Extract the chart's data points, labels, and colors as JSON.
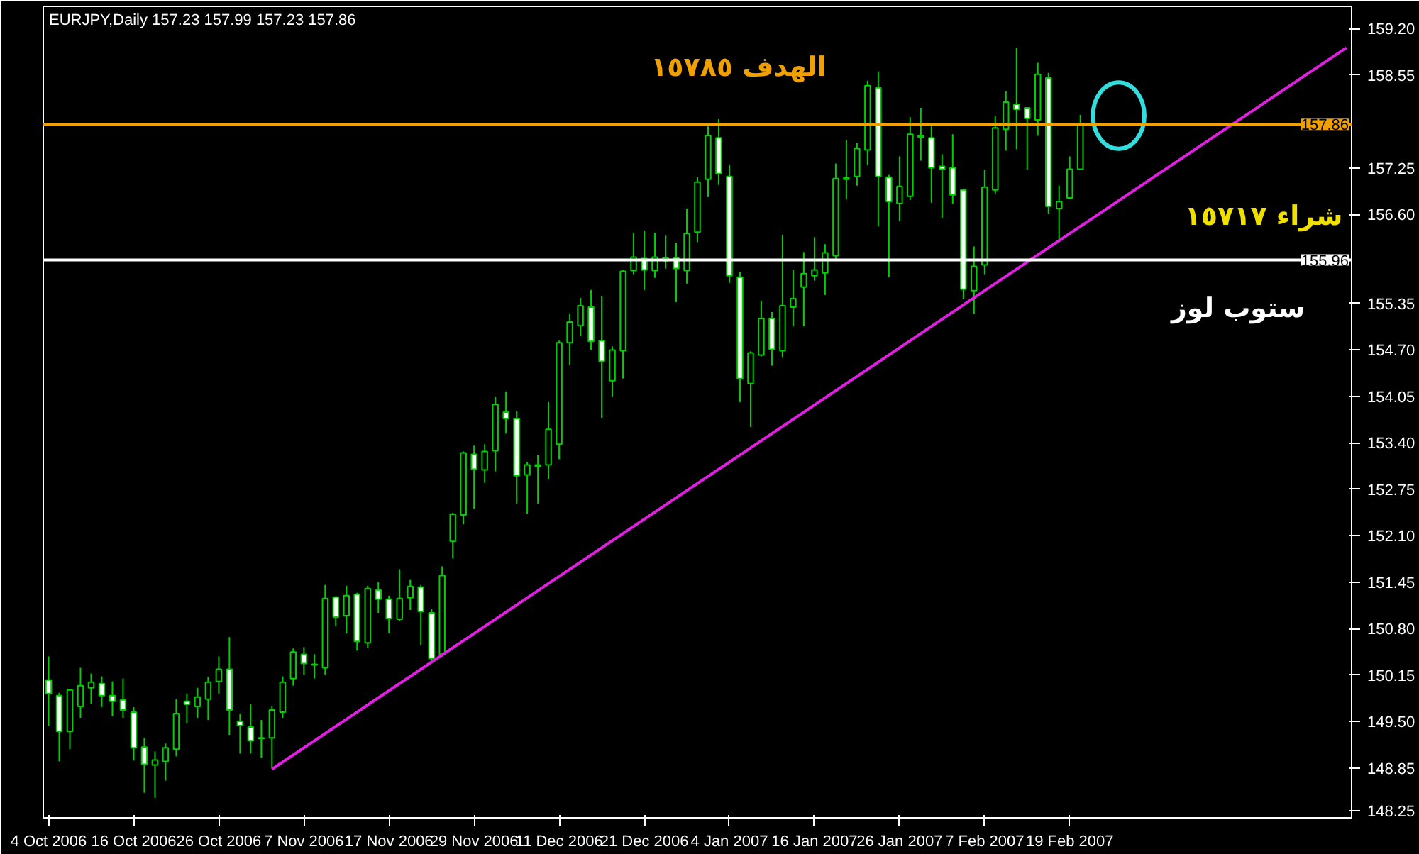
{
  "chart_data": {
    "type": "candlestick",
    "title": "EURJPY,Daily  157.23 157.99 157.23 157.86",
    "categories": [
      "4 Oct 2006",
      null,
      null,
      null,
      null,
      null,
      null,
      null,
      "16 Oct 2006",
      null,
      null,
      null,
      null,
      null,
      null,
      null,
      "26 Oct 2006",
      null,
      null,
      null,
      null,
      null,
      null,
      null,
      "7 Nov 2006",
      null,
      null,
      null,
      null,
      null,
      null,
      null,
      "17 Nov 2006",
      null,
      null,
      null,
      null,
      null,
      null,
      null,
      "29 Nov 2006",
      null,
      null,
      null,
      null,
      null,
      null,
      null,
      "11 Dec 2006",
      null,
      null,
      null,
      null,
      null,
      null,
      null,
      "21 Dec 2006",
      null,
      null,
      null,
      null,
      null,
      null,
      null,
      "4 Jan 2007",
      null,
      null,
      null,
      null,
      null,
      null,
      null,
      "16 Jan 2007",
      null,
      null,
      null,
      null,
      null,
      null,
      null,
      "26 Jan 2007",
      null,
      null,
      null,
      null,
      null,
      null,
      null,
      "7 Feb 2007",
      null,
      null,
      null,
      null,
      null,
      null,
      null,
      "19 Feb 2007",
      null,
      null,
      null,
      null,
      null,
      null,
      null,
      null,
      null,
      null,
      null,
      null,
      null,
      null,
      null,
      null,
      null,
      null,
      null,
      null,
      null,
      null,
      null,
      null,
      null,
      null
    ],
    "ohlc": [
      [
        150.08,
        150.41,
        149.44,
        149.89
      ],
      [
        149.86,
        149.9,
        148.94,
        149.36
      ],
      [
        149.36,
        149.94,
        149.11,
        149.94
      ],
      [
        149.71,
        150.25,
        149.55,
        150.0
      ],
      [
        149.97,
        150.17,
        149.75,
        150.05
      ],
      [
        150.03,
        150.13,
        149.7,
        149.86
      ],
      [
        149.86,
        150.06,
        149.57,
        149.78
      ],
      [
        149.8,
        150.1,
        149.55,
        149.66
      ],
      [
        149.63,
        149.7,
        148.95,
        149.13
      ],
      [
        149.14,
        149.27,
        148.5,
        148.9
      ],
      [
        148.89,
        149.08,
        148.43,
        148.96
      ],
      [
        148.94,
        149.19,
        148.67,
        149.13
      ],
      [
        149.11,
        149.81,
        149.01,
        149.61
      ],
      [
        149.78,
        149.89,
        149.47,
        149.74
      ],
      [
        149.71,
        149.97,
        149.55,
        149.84
      ],
      [
        149.81,
        150.12,
        149.52,
        150.05
      ],
      [
        150.06,
        150.41,
        149.89,
        150.23
      ],
      [
        150.23,
        150.68,
        149.31,
        149.66
      ],
      [
        149.5,
        149.61,
        149.05,
        149.44
      ],
      [
        149.42,
        149.74,
        149.05,
        149.23
      ],
      [
        149.27,
        149.52,
        148.99,
        149.26
      ],
      [
        149.27,
        149.71,
        148.84,
        149.66
      ],
      [
        149.63,
        150.13,
        149.55,
        150.05
      ],
      [
        150.1,
        150.52,
        150.0,
        150.47
      ],
      [
        150.44,
        150.54,
        150.15,
        150.31
      ],
      [
        150.3,
        150.44,
        150.1,
        150.29
      ],
      [
        150.25,
        151.41,
        150.15,
        151.22
      ],
      [
        151.24,
        151.25,
        150.83,
        150.96
      ],
      [
        150.98,
        151.4,
        150.73,
        151.26
      ],
      [
        151.28,
        151.3,
        150.49,
        150.62
      ],
      [
        150.6,
        151.4,
        150.53,
        151.36
      ],
      [
        151.34,
        151.45,
        151.02,
        151.21
      ],
      [
        151.21,
        151.26,
        150.73,
        150.94
      ],
      [
        150.93,
        151.63,
        150.91,
        151.22
      ],
      [
        151.23,
        151.48,
        151.06,
        151.39
      ],
      [
        151.38,
        151.41,
        150.57,
        151.04
      ],
      [
        151.02,
        151.07,
        150.34,
        150.38
      ],
      [
        150.44,
        151.67,
        150.41,
        151.54
      ],
      [
        152.02,
        152.42,
        151.78,
        152.4
      ],
      [
        152.39,
        153.28,
        152.26,
        153.26
      ],
      [
        153.24,
        153.36,
        152.47,
        153.03
      ],
      [
        153.02,
        153.38,
        152.84,
        153.28
      ],
      [
        153.29,
        154.05,
        153.0,
        153.94
      ],
      [
        153.83,
        154.12,
        153.53,
        153.74
      ],
      [
        153.74,
        153.84,
        152.55,
        152.94
      ],
      [
        152.95,
        153.13,
        152.41,
        153.09
      ],
      [
        153.07,
        153.23,
        152.55,
        153.09
      ],
      [
        153.09,
        153.97,
        152.89,
        153.59
      ],
      [
        153.38,
        154.83,
        153.17,
        154.8
      ],
      [
        154.8,
        155.21,
        154.49,
        155.09
      ],
      [
        155.04,
        155.43,
        154.9,
        155.32
      ],
      [
        155.3,
        155.54,
        154.7,
        154.82
      ],
      [
        154.83,
        155.45,
        153.75,
        154.54
      ],
      [
        154.27,
        154.75,
        154.05,
        154.7
      ],
      [
        154.69,
        155.82,
        154.3,
        155.8
      ],
      [
        155.81,
        156.34,
        155.76,
        156.0
      ],
      [
        155.98,
        156.37,
        155.54,
        155.82
      ],
      [
        155.81,
        156.34,
        155.71,
        156.0
      ],
      [
        155.95,
        156.3,
        155.84,
        155.99
      ],
      [
        155.99,
        156.2,
        155.37,
        155.84
      ],
      [
        155.81,
        156.68,
        155.63,
        156.33
      ],
      [
        156.35,
        157.12,
        156.21,
        157.05
      ],
      [
        157.09,
        157.83,
        156.84,
        157.7
      ],
      [
        157.67,
        157.93,
        157.01,
        157.17
      ],
      [
        157.13,
        157.29,
        155.64,
        155.74
      ],
      [
        155.72,
        155.79,
        153.97,
        154.3
      ],
      [
        154.23,
        154.68,
        153.62,
        154.66
      ],
      [
        154.63,
        155.39,
        154.61,
        155.14
      ],
      [
        155.14,
        155.23,
        154.48,
        154.71
      ],
      [
        154.69,
        156.31,
        154.59,
        155.32
      ],
      [
        155.3,
        155.82,
        155.03,
        155.42
      ],
      [
        155.58,
        156.07,
        155.03,
        155.77
      ],
      [
        155.74,
        156.28,
        155.67,
        155.82
      ],
      [
        155.78,
        156.18,
        155.47,
        156.06
      ],
      [
        156.02,
        157.31,
        155.95,
        157.1
      ],
      [
        157.09,
        157.64,
        156.81,
        157.11
      ],
      [
        157.13,
        157.6,
        157.0,
        157.52
      ],
      [
        157.5,
        158.47,
        157.29,
        158.4
      ],
      [
        158.37,
        158.6,
        156.43,
        157.13
      ],
      [
        157.12,
        157.15,
        155.72,
        156.78
      ],
      [
        156.75,
        157.41,
        156.5,
        156.99
      ],
      [
        156.85,
        157.96,
        156.8,
        157.72
      ],
      [
        157.68,
        158.09,
        157.35,
        157.7
      ],
      [
        157.67,
        157.83,
        156.76,
        157.25
      ],
      [
        157.27,
        157.44,
        156.55,
        157.23
      ],
      [
        157.25,
        157.72,
        156.75,
        156.87
      ],
      [
        156.94,
        156.96,
        155.41,
        155.55
      ],
      [
        155.53,
        156.15,
        155.21,
        155.87
      ],
      [
        155.89,
        157.22,
        155.76,
        156.98
      ],
      [
        156.94,
        157.98,
        156.89,
        157.81
      ],
      [
        157.79,
        158.32,
        157.49,
        158.17
      ],
      [
        158.14,
        158.93,
        157.51,
        158.07
      ],
      [
        158.09,
        158.09,
        157.22,
        157.94
      ],
      [
        157.92,
        158.72,
        157.7,
        158.56
      ],
      [
        158.51,
        158.58,
        156.6,
        156.71
      ],
      [
        156.68,
        157.0,
        156.21,
        156.78
      ],
      [
        156.83,
        157.41,
        156.81,
        157.23
      ],
      [
        157.23,
        157.99,
        157.23,
        157.86
      ],
      null,
      null,
      null,
      null,
      null,
      null,
      null,
      null,
      null,
      null,
      null,
      null,
      null,
      null,
      null,
      null,
      null,
      null,
      null,
      null,
      null,
      null,
      null,
      null,
      null
    ],
    "series": [
      {
        "type": "line",
        "values": [
          null,
          null,
          null,
          null,
          null,
          null,
          null,
          null,
          null,
          null,
          null,
          null,
          null,
          null,
          null,
          null,
          null,
          null,
          null,
          null,
          null,
          148.83,
          null,
          null,
          null,
          null,
          null,
          null,
          null,
          null,
          null,
          null,
          null,
          null,
          null,
          null,
          null,
          null,
          null,
          null,
          null,
          null,
          null,
          null,
          null,
          null,
          null,
          null,
          null,
          null,
          null,
          null,
          null,
          null,
          null,
          null,
          null,
          null,
          null,
          null,
          null,
          null,
          null,
          null,
          null,
          null,
          null,
          null,
          null,
          null,
          null,
          null,
          null,
          null,
          null,
          null,
          null,
          null,
          null,
          null,
          null,
          null,
          null,
          null,
          null,
          null,
          null,
          null,
          null,
          null,
          null,
          null,
          null,
          null,
          null,
          null,
          null,
          null,
          null,
          null,
          null,
          null,
          null,
          null,
          null,
          null,
          null,
          null,
          null,
          null,
          null,
          null,
          null,
          null,
          null,
          null,
          null,
          null,
          null,
          null,
          null,
          null,
          158.93
        ],
        "color": "#e020e0"
      }
    ],
    "ylim": [
      148.15,
      159.51
    ],
    "yticks": [
      {
        "value": 148.25,
        "label": "148.25"
      },
      {
        "value": 148.85,
        "label": "148.85"
      },
      {
        "value": 149.5,
        "label": "149.50"
      },
      {
        "value": 150.15,
        "label": "150.15"
      },
      {
        "value": 150.8,
        "label": "150.80"
      },
      {
        "value": 151.45,
        "label": "151.45"
      },
      {
        "value": 152.1,
        "label": "152.10"
      },
      {
        "value": 152.75,
        "label": "152.75"
      },
      {
        "value": 153.4,
        "label": "153.40"
      },
      {
        "value": 154.05,
        "label": "154.05"
      },
      {
        "value": 154.7,
        "label": "154.70"
      },
      {
        "value": 155.35,
        "label": "155.35"
      },
      {
        "value": 156.6,
        "label": "156.60"
      },
      {
        "value": 157.25,
        "label": "157.25"
      },
      {
        "value": 158.55,
        "label": "158.55"
      },
      {
        "value": 159.2,
        "label": "159.20"
      }
    ],
    "ref_lines": [
      {
        "axis": "y",
        "value": 157.86,
        "label": "157.86",
        "color": "#f0a000"
      },
      {
        "axis": "y",
        "value": 155.96,
        "label": "155.96",
        "color": "#ffffff"
      }
    ],
    "annotations": [
      "الهدف ١٥٧٨٥",
      "شراء ١٥٧١٧",
      "ستوب لوز"
    ]
  }
}
